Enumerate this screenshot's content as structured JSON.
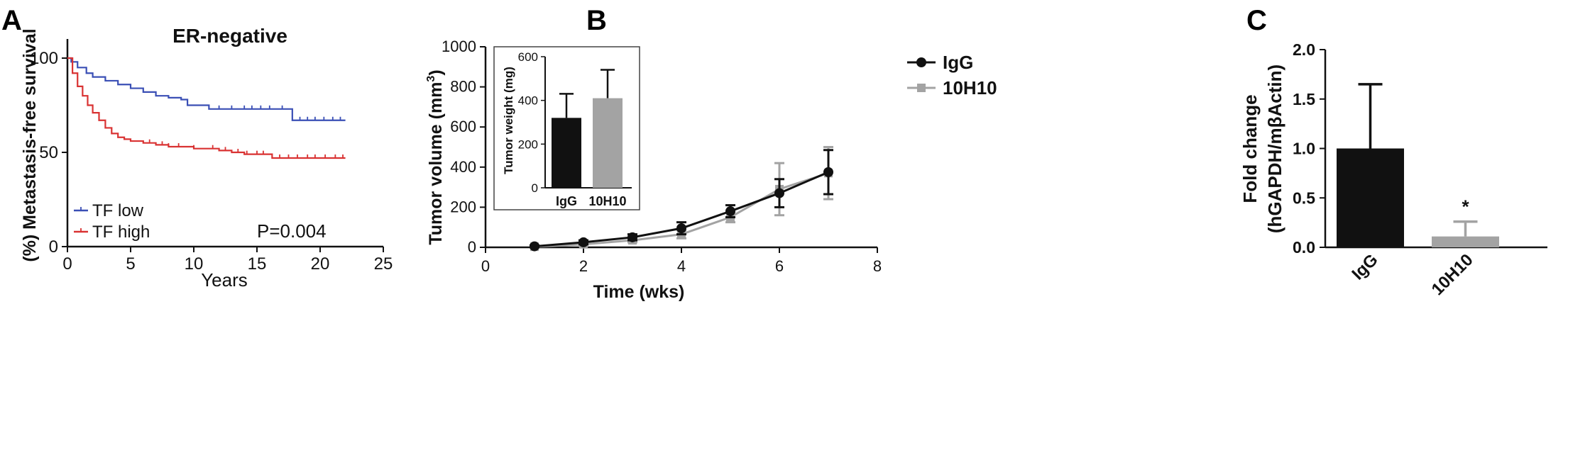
{
  "panel_labels": {
    "a": "A",
    "b": "B",
    "c": "C"
  },
  "chart_data": [
    {
      "panel": "A",
      "type": "line",
      "title": "ER-negative",
      "xlabel": "Years",
      "ylabel": "(%) Metastasis-free survival",
      "xlim": [
        0,
        25
      ],
      "ylim": [
        0,
        100
      ],
      "xticks": [
        "0",
        "5",
        "10",
        "15",
        "20",
        "25"
      ],
      "yticks": [
        "0",
        "50",
        "100"
      ],
      "annotation": "P=0.004",
      "legend_position": "bottom-left",
      "series": [
        {
          "name": "TF low",
          "color": "#3a4fb5",
          "points": [
            [
              0,
              100
            ],
            [
              0.3,
              98
            ],
            [
              0.8,
              95
            ],
            [
              1.5,
              92
            ],
            [
              2,
              90
            ],
            [
              3,
              88
            ],
            [
              4,
              86
            ],
            [
              5,
              84
            ],
            [
              6,
              82
            ],
            [
              7,
              80
            ],
            [
              8,
              79
            ],
            [
              9,
              78
            ],
            [
              9.5,
              75
            ],
            [
              11,
              75
            ],
            [
              11.2,
              73
            ],
            [
              12,
              73
            ],
            [
              14,
              73
            ],
            [
              16,
              73
            ],
            [
              17.6,
              73
            ],
            [
              17.8,
              67
            ],
            [
              20,
              67
            ],
            [
              22,
              67
            ]
          ],
          "censor_x": [
            12,
            13,
            14,
            14.6,
            15.3,
            16,
            17,
            18.4,
            19,
            19.6,
            20.3,
            21,
            21.6
          ]
        },
        {
          "name": "TF high",
          "color": "#d93232",
          "points": [
            [
              0,
              100
            ],
            [
              0.4,
              92
            ],
            [
              0.8,
              85
            ],
            [
              1.2,
              80
            ],
            [
              1.6,
              75
            ],
            [
              2,
              71
            ],
            [
              2.5,
              67
            ],
            [
              3,
              63
            ],
            [
              3.5,
              60
            ],
            [
              4,
              58
            ],
            [
              4.5,
              57
            ],
            [
              5,
              56
            ],
            [
              6,
              55
            ],
            [
              7,
              54
            ],
            [
              8,
              53
            ],
            [
              9,
              53
            ],
            [
              10,
              52
            ],
            [
              11,
              52
            ],
            [
              12,
              51
            ],
            [
              13,
              50
            ],
            [
              14,
              49
            ],
            [
              15,
              49
            ],
            [
              16,
              49
            ],
            [
              16.2,
              47
            ],
            [
              18,
              47
            ],
            [
              20,
              47
            ],
            [
              22,
              47
            ]
          ],
          "censor_x": [
            6.5,
            7.5,
            8,
            8.8,
            10,
            11.5,
            12.5,
            13.5,
            14.2,
            15,
            15.5,
            16.8,
            17.5,
            18.2,
            19,
            19.6,
            20.4,
            21.2,
            21.8
          ]
        }
      ]
    },
    {
      "panel": "B",
      "type": "line",
      "xlabel": "Time (wks)",
      "ylabel": "Tumor volume (mm",
      "ylabel_sup": "3",
      "ylabel_close": ")",
      "xlim": [
        0,
        8
      ],
      "ylim": [
        0,
        1000
      ],
      "xticks": [
        "0",
        "2",
        "4",
        "6",
        "8"
      ],
      "yticks": [
        "0",
        "200",
        "400",
        "600",
        "800",
        "1000"
      ],
      "legend_position": "right",
      "series": [
        {
          "name": "IgG",
          "color": "#111111",
          "x": [
            1,
            2,
            3,
            4,
            5,
            6,
            7
          ],
          "values": [
            5,
            25,
            50,
            95,
            180,
            270,
            375
          ],
          "errors": [
            5,
            10,
            15,
            30,
            30,
            70,
            110
          ]
        },
        {
          "name": "10H10",
          "color": "#a3a3a3",
          "x": [
            1,
            2,
            3,
            4,
            5,
            6,
            7
          ],
          "values": [
            3,
            15,
            35,
            65,
            150,
            290,
            370
          ],
          "errors": [
            4,
            8,
            10,
            20,
            25,
            130,
            130
          ]
        }
      ]
    },
    {
      "panel": "B-inset",
      "type": "bar",
      "ylabel": "Tumor weight (mg)",
      "ylim": [
        0,
        600
      ],
      "yticks": [
        "0",
        "200",
        "400",
        "600"
      ],
      "categories": [
        "IgG",
        "10H10"
      ],
      "values": [
        320,
        410
      ],
      "errors": [
        110,
        130
      ],
      "colors": [
        "#111111",
        "#a3a3a3"
      ]
    },
    {
      "panel": "C",
      "type": "bar",
      "ylabel": "Fold change",
      "ylabel2": "(hGAPDH/mβActin)",
      "ylim": [
        0,
        2.0
      ],
      "yticks": [
        "0.0",
        "0.5",
        "1.0",
        "1.5",
        "2.0"
      ],
      "categories": [
        "IgG",
        "10H10"
      ],
      "values": [
        1.0,
        0.11
      ],
      "errors": [
        0.65,
        0.15
      ],
      "colors": [
        "#111111",
        "#a3a3a3"
      ],
      "annotation": "*"
    }
  ]
}
